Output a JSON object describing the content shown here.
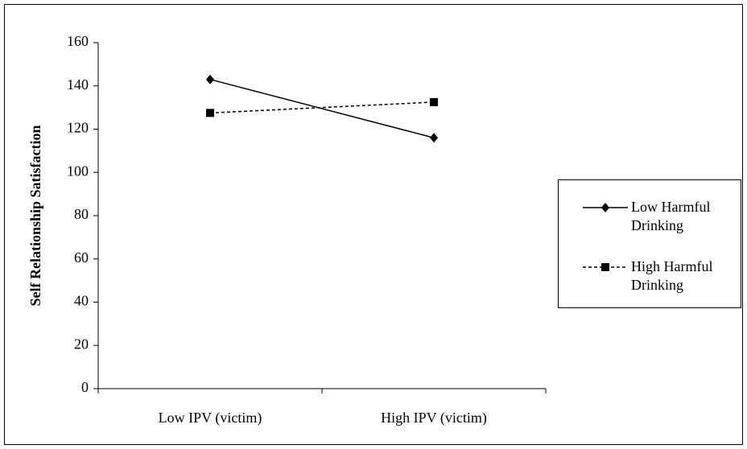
{
  "chart_data": {
    "type": "line",
    "ylabel": "Self Relationship Satisfaction",
    "categories": [
      "Low IPV (victim)",
      "High IPV (victim)"
    ],
    "series": [
      {
        "name": "Low Harmful Drinking",
        "color": "#000000",
        "marker": "diamond",
        "line_style": "solid",
        "values": [
          143,
          116
        ]
      },
      {
        "name": "High Harmful Drinking",
        "color": "#000000",
        "marker": "square",
        "line_style": "dashed",
        "values": [
          127.5,
          132.5
        ]
      }
    ],
    "ylim": [
      0,
      160
    ],
    "yticks": [
      0,
      20,
      40,
      60,
      80,
      100,
      120,
      140,
      160
    ],
    "grid": false,
    "legend": "right"
  }
}
